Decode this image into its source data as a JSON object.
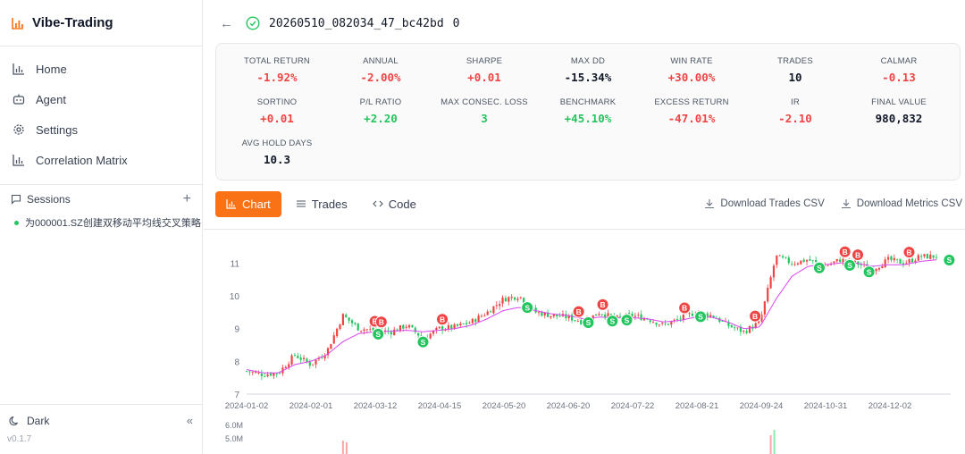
{
  "app": {
    "title": "Vibe-Trading",
    "version": "v0.1.7"
  },
  "nav": [
    {
      "label": "Home",
      "icon": "bar-chart-icon"
    },
    {
      "label": "Agent",
      "icon": "bot-icon"
    },
    {
      "label": "Settings",
      "icon": "gear-icon"
    },
    {
      "label": "Correlation Matrix",
      "icon": "bar-chart-icon"
    }
  ],
  "sessions": {
    "label": "Sessions",
    "items": [
      {
        "label": "为000001.SZ创建双移动平均线交叉策略"
      }
    ]
  },
  "footer": {
    "theme_label": "Dark"
  },
  "header": {
    "run_id": "20260510_082034_47_bc42bd",
    "suffix": "0"
  },
  "metrics": [
    {
      "label": "TOTAL RETURN",
      "value": "-1.92%",
      "tone": "red"
    },
    {
      "label": "ANNUAL",
      "value": "-2.00%",
      "tone": "red"
    },
    {
      "label": "SHARPE",
      "value": "+0.01",
      "tone": "red"
    },
    {
      "label": "MAX DD",
      "value": "-15.34%",
      "tone": "dark"
    },
    {
      "label": "WIN RATE",
      "value": "+30.00%",
      "tone": "red"
    },
    {
      "label": "TRADES",
      "value": "10",
      "tone": "dark"
    },
    {
      "label": "CALMAR",
      "value": "-0.13",
      "tone": "red"
    },
    {
      "label": "SORTINO",
      "value": "+0.01",
      "tone": "red"
    },
    {
      "label": "P/L RATIO",
      "value": "+2.20",
      "tone": "green"
    },
    {
      "label": "MAX CONSEC. LOSS",
      "value": "3",
      "tone": "green"
    },
    {
      "label": "BENCHMARK",
      "value": "+45.10%",
      "tone": "green"
    },
    {
      "label": "EXCESS RETURN",
      "value": "-47.01%",
      "tone": "red"
    },
    {
      "label": "IR",
      "value": "-2.10",
      "tone": "red"
    },
    {
      "label": "FINAL VALUE",
      "value": "980,832",
      "tone": "dark"
    },
    {
      "label": "AVG HOLD DAYS",
      "value": "10.3",
      "tone": "dark"
    }
  ],
  "tabs": [
    {
      "label": "Chart",
      "active": true
    },
    {
      "label": "Trades",
      "active": false
    },
    {
      "label": "Code",
      "active": false
    }
  ],
  "downloads": {
    "trades": "Download Trades CSV",
    "metrics": "Download Metrics CSV"
  },
  "colors": {
    "accent": "#f97316",
    "up": "#ef4444",
    "down": "#22c55e",
    "ma": "#d946ef"
  },
  "chart_data": {
    "type": "candlestick",
    "y_ticks": [
      "11",
      "10",
      "9",
      "8",
      "7"
    ],
    "ylim": [
      7,
      11.8
    ],
    "x_ticks": [
      "2024-01-02",
      "2024-02-01",
      "2024-03-12",
      "2024-04-15",
      "2024-05-20",
      "2024-06-20",
      "2024-07-22",
      "2024-08-21",
      "2024-09-24",
      "2024-10-31",
      "2024-12-02"
    ],
    "price_path": [
      7.7,
      7.6,
      7.65,
      8.2,
      7.9,
      8.3,
      9.4,
      9.0,
      8.95,
      8.9,
      9.1,
      8.7,
      9.0,
      9.05,
      9.2,
      9.5,
      9.9,
      10.0,
      9.5,
      9.4,
      9.35,
      9.2,
      9.5,
      9.3,
      9.4,
      9.3,
      9.1,
      9.3,
      9.5,
      9.4,
      9.1,
      8.9,
      9.2,
      11.2,
      11.0,
      11.1,
      10.9,
      11.1,
      11.0,
      10.8,
      11.1,
      11.0,
      11.2,
      11.2
    ],
    "ma_path": [
      7.75,
      7.65,
      7.65,
      7.9,
      8.0,
      8.2,
      8.6,
      8.85,
      8.9,
      8.92,
      8.95,
      8.9,
      8.95,
      9.0,
      9.1,
      9.3,
      9.55,
      9.65,
      9.55,
      9.45,
      9.4,
      9.3,
      9.35,
      9.33,
      9.33,
      9.3,
      9.2,
      9.25,
      9.35,
      9.35,
      9.2,
      9.0,
      9.05,
      9.9,
      10.6,
      10.9,
      10.95,
      11.0,
      11.0,
      10.9,
      10.95,
      10.95,
      11.05,
      11.1
    ],
    "signals": [
      {
        "type": "B",
        "date_idx": 8
      },
      {
        "type": "B",
        "date_idx": 8.4
      },
      {
        "type": "S",
        "date_idx": 8.2
      },
      {
        "type": "S",
        "date_idx": 11
      },
      {
        "type": "B",
        "date_idx": 12.2
      },
      {
        "type": "S",
        "date_idx": 17.5
      },
      {
        "type": "B",
        "date_idx": 20.7
      },
      {
        "type": "S",
        "date_idx": 21.3
      },
      {
        "type": "B",
        "date_idx": 22.2
      },
      {
        "type": "S",
        "date_idx": 22.8
      },
      {
        "type": "S",
        "date_idx": 23.7
      },
      {
        "type": "B",
        "date_idx": 27.3
      },
      {
        "type": "S",
        "date_idx": 28.3
      },
      {
        "type": "B",
        "date_idx": 31.7
      },
      {
        "type": "S",
        "date_idx": 35.7
      },
      {
        "type": "B",
        "date_idx": 37.3
      },
      {
        "type": "S",
        "date_idx": 37.6
      },
      {
        "type": "B",
        "date_idx": 38.1
      },
      {
        "type": "S",
        "date_idx": 38.8
      },
      {
        "type": "B",
        "date_idx": 41.3
      },
      {
        "type": "S",
        "date_idx": 43.8
      }
    ],
    "volume_ticks": [
      "6.0M",
      "5.0M"
    ]
  }
}
